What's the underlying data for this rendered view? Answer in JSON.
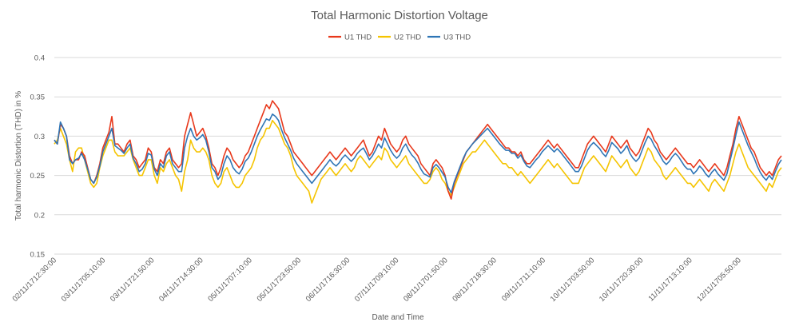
{
  "chart_data": {
    "type": "line",
    "title": "Total Harmonic Distortion Voltage",
    "xlabel": "Date and Time",
    "ylabel": "Total harmonic Distortion (THD) in %",
    "ylim": [
      0.15,
      0.4
    ],
    "yticks": [
      "0.15",
      "0.2",
      "0.25",
      "0.3",
      "0.35",
      "0.4"
    ],
    "grid": true,
    "legend_position": "top",
    "xtick_labels": [
      "02/11/1712:30:00",
      "03/11/1705:10:00",
      "03/11/1721:50:00",
      "04/11/1714:30:00",
      "05/11/1707:10:00",
      "05/11/1723:50:00",
      "06/11/1716:30:00",
      "07/11/1709:10:00",
      "08/11/1701:50:00",
      "08/11/1718:30:00",
      "09/11/1711:10:00",
      "10/11/1703:50:00",
      "10/11/1720:30:00",
      "11/11/1713:10:00",
      "12/11/1705:50:00"
    ],
    "series": [
      {
        "name": "U1 THD",
        "color": "#e8381b",
        "values": [
          0.295,
          0.29,
          0.315,
          0.31,
          0.3,
          0.275,
          0.265,
          0.27,
          0.27,
          0.28,
          0.275,
          0.26,
          0.245,
          0.24,
          0.25,
          0.265,
          0.285,
          0.295,
          0.305,
          0.325,
          0.29,
          0.29,
          0.285,
          0.28,
          0.29,
          0.295,
          0.275,
          0.27,
          0.26,
          0.265,
          0.27,
          0.285,
          0.28,
          0.26,
          0.255,
          0.27,
          0.265,
          0.28,
          0.285,
          0.27,
          0.265,
          0.26,
          0.265,
          0.3,
          0.315,
          0.33,
          0.315,
          0.3,
          0.305,
          0.31,
          0.3,
          0.285,
          0.265,
          0.26,
          0.25,
          0.26,
          0.275,
          0.285,
          0.28,
          0.27,
          0.265,
          0.26,
          0.265,
          0.275,
          0.28,
          0.29,
          0.3,
          0.31,
          0.32,
          0.33,
          0.34,
          0.335,
          0.345,
          0.34,
          0.335,
          0.32,
          0.305,
          0.3,
          0.29,
          0.28,
          0.275,
          0.27,
          0.265,
          0.26,
          0.255,
          0.25,
          0.255,
          0.26,
          0.265,
          0.27,
          0.275,
          0.28,
          0.275,
          0.27,
          0.275,
          0.28,
          0.285,
          0.28,
          0.275,
          0.28,
          0.285,
          0.29,
          0.295,
          0.285,
          0.275,
          0.28,
          0.29,
          0.3,
          0.295,
          0.31,
          0.3,
          0.29,
          0.285,
          0.28,
          0.285,
          0.295,
          0.3,
          0.29,
          0.285,
          0.28,
          0.275,
          0.265,
          0.26,
          0.255,
          0.25,
          0.265,
          0.27,
          0.265,
          0.26,
          0.25,
          0.23,
          0.22,
          0.24,
          0.25,
          0.26,
          0.27,
          0.28,
          0.285,
          0.29,
          0.295,
          0.3,
          0.305,
          0.31,
          0.315,
          0.31,
          0.305,
          0.3,
          0.295,
          0.29,
          0.285,
          0.285,
          0.28,
          0.28,
          0.275,
          0.28,
          0.27,
          0.265,
          0.265,
          0.27,
          0.275,
          0.28,
          0.285,
          0.29,
          0.295,
          0.29,
          0.285,
          0.29,
          0.285,
          0.28,
          0.275,
          0.27,
          0.265,
          0.26,
          0.26,
          0.27,
          0.28,
          0.29,
          0.295,
          0.3,
          0.295,
          0.29,
          0.285,
          0.28,
          0.29,
          0.3,
          0.295,
          0.29,
          0.285,
          0.29,
          0.295,
          0.285,
          0.28,
          0.275,
          0.28,
          0.29,
          0.3,
          0.31,
          0.305,
          0.295,
          0.29,
          0.28,
          0.275,
          0.27,
          0.275,
          0.28,
          0.285,
          0.28,
          0.275,
          0.27,
          0.265,
          0.265,
          0.26,
          0.265,
          0.27,
          0.265,
          0.26,
          0.255,
          0.26,
          0.265,
          0.26,
          0.255,
          0.25,
          0.26,
          0.275,
          0.29,
          0.31,
          0.325,
          0.315,
          0.305,
          0.295,
          0.285,
          0.28,
          0.27,
          0.26,
          0.255,
          0.25,
          0.255,
          0.25,
          0.26,
          0.27,
          0.275
        ]
      },
      {
        "name": "U2 THD",
        "color": "#f5c400",
        "values": [
          0.29,
          0.295,
          0.31,
          0.3,
          0.29,
          0.27,
          0.255,
          0.28,
          0.285,
          0.285,
          0.27,
          0.255,
          0.24,
          0.235,
          0.24,
          0.26,
          0.275,
          0.285,
          0.295,
          0.295,
          0.28,
          0.275,
          0.275,
          0.275,
          0.28,
          0.285,
          0.27,
          0.26,
          0.25,
          0.25,
          0.26,
          0.27,
          0.27,
          0.25,
          0.24,
          0.26,
          0.255,
          0.265,
          0.27,
          0.26,
          0.25,
          0.245,
          0.23,
          0.255,
          0.27,
          0.295,
          0.285,
          0.28,
          0.28,
          0.285,
          0.28,
          0.27,
          0.25,
          0.24,
          0.235,
          0.24,
          0.255,
          0.26,
          0.25,
          0.24,
          0.235,
          0.235,
          0.24,
          0.25,
          0.255,
          0.26,
          0.27,
          0.285,
          0.295,
          0.3,
          0.31,
          0.31,
          0.32,
          0.315,
          0.31,
          0.3,
          0.29,
          0.285,
          0.275,
          0.26,
          0.25,
          0.245,
          0.24,
          0.235,
          0.23,
          0.215,
          0.225,
          0.235,
          0.245,
          0.25,
          0.255,
          0.26,
          0.255,
          0.25,
          0.255,
          0.26,
          0.265,
          0.26,
          0.255,
          0.26,
          0.27,
          0.275,
          0.27,
          0.265,
          0.26,
          0.265,
          0.27,
          0.275,
          0.27,
          0.285,
          0.28,
          0.27,
          0.265,
          0.26,
          0.265,
          0.27,
          0.275,
          0.265,
          0.26,
          0.255,
          0.25,
          0.245,
          0.24,
          0.24,
          0.245,
          0.255,
          0.26,
          0.255,
          0.245,
          0.24,
          0.23,
          0.225,
          0.235,
          0.245,
          0.255,
          0.265,
          0.27,
          0.275,
          0.28,
          0.28,
          0.285,
          0.29,
          0.295,
          0.29,
          0.285,
          0.28,
          0.275,
          0.27,
          0.265,
          0.265,
          0.26,
          0.26,
          0.255,
          0.25,
          0.255,
          0.25,
          0.245,
          0.24,
          0.245,
          0.25,
          0.255,
          0.26,
          0.265,
          0.27,
          0.265,
          0.26,
          0.265,
          0.26,
          0.255,
          0.25,
          0.245,
          0.24,
          0.24,
          0.24,
          0.25,
          0.26,
          0.265,
          0.27,
          0.275,
          0.27,
          0.265,
          0.26,
          0.255,
          0.265,
          0.275,
          0.27,
          0.265,
          0.26,
          0.265,
          0.27,
          0.26,
          0.255,
          0.25,
          0.255,
          0.265,
          0.275,
          0.285,
          0.28,
          0.27,
          0.265,
          0.26,
          0.25,
          0.245,
          0.25,
          0.255,
          0.26,
          0.255,
          0.25,
          0.245,
          0.24,
          0.24,
          0.235,
          0.24,
          0.245,
          0.24,
          0.235,
          0.23,
          0.24,
          0.245,
          0.24,
          0.235,
          0.23,
          0.24,
          0.25,
          0.265,
          0.28,
          0.29,
          0.28,
          0.27,
          0.26,
          0.255,
          0.25,
          0.245,
          0.24,
          0.235,
          0.23,
          0.24,
          0.235,
          0.245,
          0.255,
          0.26
        ]
      },
      {
        "name": "U3 THD",
        "color": "#2e75b6",
        "values": [
          0.295,
          0.29,
          0.318,
          0.31,
          0.3,
          0.27,
          0.265,
          0.27,
          0.272,
          0.278,
          0.27,
          0.258,
          0.245,
          0.24,
          0.248,
          0.262,
          0.28,
          0.29,
          0.3,
          0.31,
          0.288,
          0.285,
          0.282,
          0.278,
          0.285,
          0.29,
          0.272,
          0.265,
          0.255,
          0.258,
          0.265,
          0.278,
          0.276,
          0.258,
          0.25,
          0.265,
          0.26,
          0.275,
          0.28,
          0.265,
          0.26,
          0.255,
          0.255,
          0.285,
          0.3,
          0.31,
          0.3,
          0.295,
          0.298,
          0.302,
          0.295,
          0.28,
          0.26,
          0.255,
          0.245,
          0.25,
          0.265,
          0.275,
          0.27,
          0.26,
          0.255,
          0.252,
          0.258,
          0.268,
          0.272,
          0.28,
          0.29,
          0.3,
          0.308,
          0.315,
          0.322,
          0.32,
          0.328,
          0.325,
          0.32,
          0.308,
          0.298,
          0.29,
          0.282,
          0.272,
          0.265,
          0.26,
          0.255,
          0.25,
          0.245,
          0.24,
          0.245,
          0.25,
          0.255,
          0.26,
          0.265,
          0.27,
          0.265,
          0.262,
          0.266,
          0.272,
          0.276,
          0.272,
          0.268,
          0.272,
          0.278,
          0.282,
          0.285,
          0.278,
          0.27,
          0.275,
          0.282,
          0.29,
          0.285,
          0.298,
          0.29,
          0.282,
          0.276,
          0.272,
          0.276,
          0.285,
          0.29,
          0.282,
          0.276,
          0.272,
          0.266,
          0.258,
          0.252,
          0.25,
          0.248,
          0.26,
          0.264,
          0.26,
          0.254,
          0.248,
          0.235,
          0.228,
          0.242,
          0.252,
          0.262,
          0.272,
          0.28,
          0.285,
          0.29,
          0.294,
          0.298,
          0.302,
          0.306,
          0.31,
          0.305,
          0.3,
          0.295,
          0.29,
          0.286,
          0.282,
          0.282,
          0.278,
          0.278,
          0.272,
          0.276,
          0.268,
          0.262,
          0.26,
          0.265,
          0.27,
          0.274,
          0.28,
          0.284,
          0.288,
          0.284,
          0.28,
          0.284,
          0.28,
          0.275,
          0.27,
          0.265,
          0.26,
          0.255,
          0.255,
          0.262,
          0.272,
          0.282,
          0.288,
          0.292,
          0.288,
          0.284,
          0.278,
          0.274,
          0.282,
          0.292,
          0.288,
          0.284,
          0.278,
          0.282,
          0.288,
          0.278,
          0.272,
          0.268,
          0.272,
          0.282,
          0.292,
          0.3,
          0.296,
          0.288,
          0.282,
          0.275,
          0.268,
          0.264,
          0.268,
          0.274,
          0.278,
          0.274,
          0.268,
          0.262,
          0.258,
          0.258,
          0.252,
          0.256,
          0.262,
          0.258,
          0.252,
          0.248,
          0.254,
          0.258,
          0.252,
          0.248,
          0.244,
          0.252,
          0.268,
          0.284,
          0.302,
          0.318,
          0.308,
          0.298,
          0.288,
          0.28,
          0.272,
          0.262,
          0.254,
          0.248,
          0.244,
          0.25,
          0.245,
          0.255,
          0.264,
          0.27
        ]
      }
    ]
  }
}
